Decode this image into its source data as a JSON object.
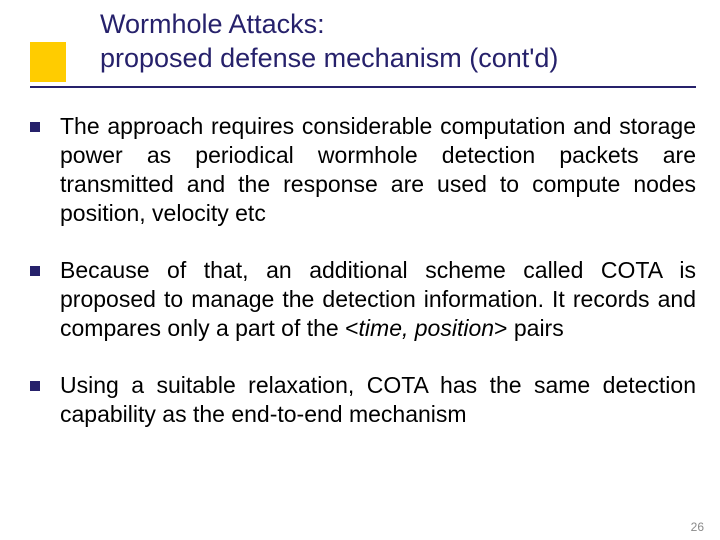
{
  "title": {
    "line1": "Wormhole Attacks:",
    "line2": "proposed defense mechanism (cont'd)",
    "color": "#26216b",
    "fontsize": 27,
    "accent_square_color": "#ffcc00",
    "rule_color": "#26216b"
  },
  "bullets": [
    {
      "marker_color": "#26216b",
      "text_pre": "The approach requires considerable computation and storage power as periodical wormhole detection packets are transmitted and the response are used to compute nodes position, velocity etc",
      "italic": "",
      "text_post": ""
    },
    {
      "marker_color": "#26216b",
      "text_pre": "Because of that, an additional scheme called COTA is proposed to manage the detection information. It records and compares only a part of the <",
      "italic": "time, position",
      "text_post": "> pairs"
    },
    {
      "marker_color": "#26216b",
      "text_pre": "Using a suitable relaxation, COTA has the same detection capability as the end-to-end mechanism",
      "italic": "",
      "text_post": ""
    }
  ],
  "body_style": {
    "fontsize": 23,
    "color": "#000000"
  },
  "page_number": "26",
  "page_number_color": "#8a8a8a"
}
